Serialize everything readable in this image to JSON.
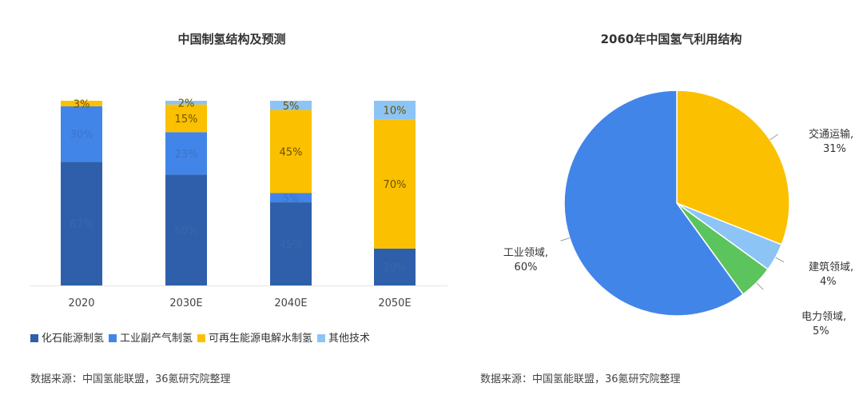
{
  "chart_data": [
    {
      "type": "bar",
      "stacked": true,
      "title": "中国制氢结构及预测",
      "categories": [
        "2020",
        "2030E",
        "2040E",
        "2050E"
      ],
      "unit": "%",
      "ylim": [
        0,
        100
      ],
      "grid": false,
      "legend_position": "bottom",
      "series": [
        {
          "name": "化石能源制氢",
          "color": "#2f5faa",
          "values": [
            67,
            60,
            45,
            20
          ]
        },
        {
          "name": "工业副产气制氢",
          "color": "#4285e8",
          "values": [
            30,
            23,
            5,
            0
          ]
        },
        {
          "name": "可再生能源电解水制氢",
          "color": "#fbc000",
          "values": [
            3,
            15,
            45,
            70
          ]
        },
        {
          "name": "其他技术",
          "color": "#8cc4f5",
          "values": [
            0,
            2,
            5,
            10
          ]
        }
      ],
      "source": "数据来源：中国氢能联盟，36氪研究院整理"
    },
    {
      "type": "pie",
      "title": "2060年中国氢气利用结构",
      "slices": [
        {
          "label": "交通运输",
          "value": 31,
          "color": "#fbc000"
        },
        {
          "label": "建筑领域",
          "value": 4,
          "color": "#8cc4f5"
        },
        {
          "label": "电力领域",
          "value": 5,
          "color": "#5cc45c"
        },
        {
          "label": "工业领域",
          "value": 60,
          "color": "#4285e8"
        }
      ],
      "source": "数据来源：中国氢能联盟，36氪研究院整理"
    }
  ]
}
